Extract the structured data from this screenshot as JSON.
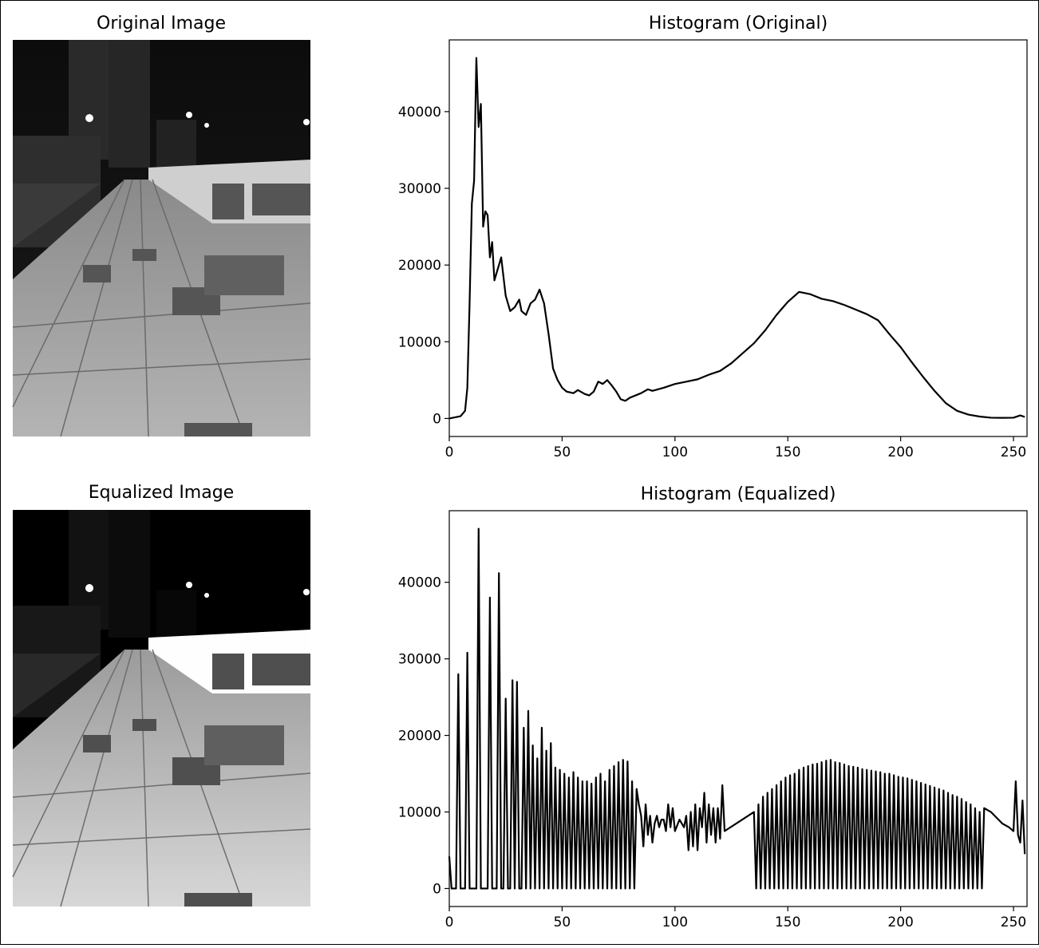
{
  "chart_data": [
    {
      "type": "image",
      "title": "Original Image"
    },
    {
      "type": "line",
      "title": "Histogram (Original)",
      "color": "#000000",
      "x": [
        0,
        5,
        7,
        8,
        9,
        10,
        11,
        12,
        13,
        14,
        15,
        16,
        17,
        18,
        19,
        20,
        22,
        23,
        25,
        27,
        29,
        31,
        32,
        34,
        36,
        38,
        40,
        42,
        44,
        46,
        48,
        50,
        52,
        55,
        57,
        60,
        62,
        64,
        66,
        68,
        70,
        72,
        74,
        76,
        78,
        80,
        85,
        88,
        90,
        95,
        100,
        105,
        110,
        115,
        120,
        125,
        130,
        135,
        140,
        145,
        150,
        155,
        160,
        165,
        170,
        175,
        180,
        185,
        190,
        195,
        200,
        205,
        210,
        215,
        220,
        225,
        230,
        235,
        240,
        245,
        250,
        253,
        255
      ],
      "values": [
        0,
        300,
        1000,
        4000,
        15000,
        28000,
        31000,
        47000,
        38000,
        41000,
        25000,
        27000,
        26500,
        21000,
        23000,
        18000,
        20000,
        21000,
        16000,
        14000,
        14500,
        15500,
        14000,
        13500,
        15000,
        15500,
        16800,
        15000,
        11000,
        6500,
        5000,
        4000,
        3500,
        3300,
        3700,
        3200,
        3000,
        3500,
        4800,
        4500,
        5000,
        4300,
        3500,
        2500,
        2300,
        2700,
        3300,
        3800,
        3600,
        4000,
        4500,
        4800,
        5100,
        5700,
        6200,
        7200,
        8500,
        9800,
        11500,
        13500,
        15200,
        16500,
        16200,
        15600,
        15300,
        14800,
        14200,
        13600,
        12800,
        11000,
        9300,
        7300,
        5400,
        3600,
        2000,
        1000,
        500,
        250,
        100,
        80,
        100,
        400,
        200
      ],
      "xlim": [
        0,
        256
      ],
      "ylim": [
        -2350,
        49350
      ],
      "xticks": [
        0,
        50,
        100,
        150,
        200,
        250
      ],
      "yticks": [
        0,
        10000,
        20000,
        30000,
        40000
      ]
    },
    {
      "type": "image",
      "title": "Equalized Image"
    },
    {
      "type": "line",
      "title": "Histogram (Equalized)",
      "color": "#000000",
      "x": [
        0,
        1,
        3,
        4,
        5,
        7,
        8,
        9,
        12,
        13,
        14,
        17,
        18,
        19,
        21,
        22,
        23,
        24,
        25,
        26,
        27,
        28,
        29,
        30,
        31,
        32,
        33,
        34,
        35,
        36,
        37,
        38,
        39,
        40,
        41,
        42,
        43,
        44,
        45,
        46,
        47,
        48,
        49,
        50,
        51,
        52,
        53,
        54,
        55,
        56,
        57,
        58,
        59,
        60,
        61,
        62,
        63,
        64,
        65,
        66,
        67,
        68,
        69,
        70,
        71,
        72,
        73,
        74,
        75,
        76,
        77,
        78,
        79,
        80,
        81,
        82,
        83,
        84,
        85,
        86,
        87,
        88,
        89,
        90,
        91,
        92,
        93,
        94,
        95,
        96,
        97,
        98,
        99,
        100,
        102,
        104,
        105,
        106,
        107,
        108,
        109,
        110,
        111,
        112,
        113,
        114,
        115,
        116,
        117,
        118,
        119,
        120,
        121,
        122,
        135,
        136,
        137,
        138,
        139,
        140,
        141,
        142,
        143,
        144,
        145,
        146,
        147,
        148,
        149,
        150,
        151,
        152,
        153,
        154,
        155,
        156,
        157,
        158,
        159,
        160,
        161,
        162,
        163,
        164,
        165,
        166,
        167,
        168,
        169,
        170,
        171,
        172,
        173,
        174,
        175,
        176,
        177,
        178,
        179,
        180,
        181,
        182,
        183,
        184,
        185,
        186,
        187,
        188,
        189,
        190,
        191,
        192,
        193,
        194,
        195,
        196,
        197,
        198,
        199,
        200,
        201,
        202,
        203,
        204,
        205,
        206,
        207,
        208,
        209,
        210,
        211,
        212,
        213,
        214,
        215,
        216,
        217,
        218,
        219,
        220,
        221,
        222,
        223,
        224,
        225,
        226,
        227,
        228,
        229,
        230,
        231,
        232,
        233,
        234,
        235,
        236,
        237,
        240,
        245,
        248,
        250,
        251,
        252,
        253,
        254,
        255
      ],
      "values": [
        4200,
        0,
        0,
        28000,
        0,
        0,
        30800,
        0,
        0,
        47000,
        0,
        0,
        38000,
        0,
        0,
        41200,
        0,
        0,
        24800,
        0,
        0,
        27200,
        0,
        27000,
        0,
        0,
        21000,
        0,
        23200,
        0,
        18700,
        0,
        17000,
        0,
        21000,
        0,
        18000,
        0,
        19000,
        0,
        15800,
        0,
        15500,
        0,
        15000,
        0,
        14500,
        0,
        15200,
        0,
        14500,
        0,
        14000,
        0,
        14000,
        0,
        13700,
        0,
        14500,
        0,
        15000,
        0,
        14000,
        0,
        15500,
        0,
        16000,
        0,
        16500,
        0,
        16800,
        0,
        16600,
        0,
        14000,
        0,
        13000,
        11000,
        9500,
        5500,
        11000,
        7000,
        9500,
        6000,
        8500,
        9500,
        8000,
        9000,
        9000,
        7500,
        11000,
        8000,
        10500,
        7500,
        9000,
        8000,
        9500,
        5000,
        10000,
        5500,
        11000,
        5000,
        10500,
        8000,
        12500,
        6000,
        11000,
        7000,
        10500,
        6000,
        10500,
        6500,
        13500,
        7500,
        10000,
        0,
        11000,
        0,
        12000,
        0,
        12500,
        0,
        13000,
        0,
        13500,
        0,
        14000,
        0,
        14500,
        0,
        14800,
        0,
        15000,
        0,
        15500,
        0,
        15800,
        0,
        16000,
        0,
        16200,
        0,
        16300,
        0,
        16500,
        0,
        16700,
        0,
        16800,
        0,
        16500,
        0,
        16400,
        0,
        16200,
        0,
        16000,
        0,
        15900,
        0,
        15800,
        0,
        15600,
        0,
        15500,
        0,
        15400,
        0,
        15300,
        0,
        15200,
        0,
        15000,
        0,
        15000,
        0,
        14800,
        0,
        14600,
        0,
        14500,
        0,
        14400,
        0,
        14200,
        0,
        14000,
        0,
        13800,
        0,
        13600,
        0,
        13400,
        0,
        13200,
        0,
        13000,
        0,
        12800,
        0,
        12500,
        0,
        12200,
        0,
        12000,
        0,
        11700,
        0,
        11300,
        0,
        11000,
        0,
        10500,
        0,
        10000,
        0,
        10500,
        10000,
        8500,
        8000,
        7500,
        14000,
        7000,
        6000,
        11500,
        4500
      ],
      "xlim": [
        0,
        256
      ],
      "ylim": [
        -2350,
        49350
      ],
      "xticks": [
        0,
        50,
        100,
        150,
        200,
        250
      ],
      "yticks": [
        0,
        10000,
        20000,
        30000,
        40000
      ]
    }
  ]
}
